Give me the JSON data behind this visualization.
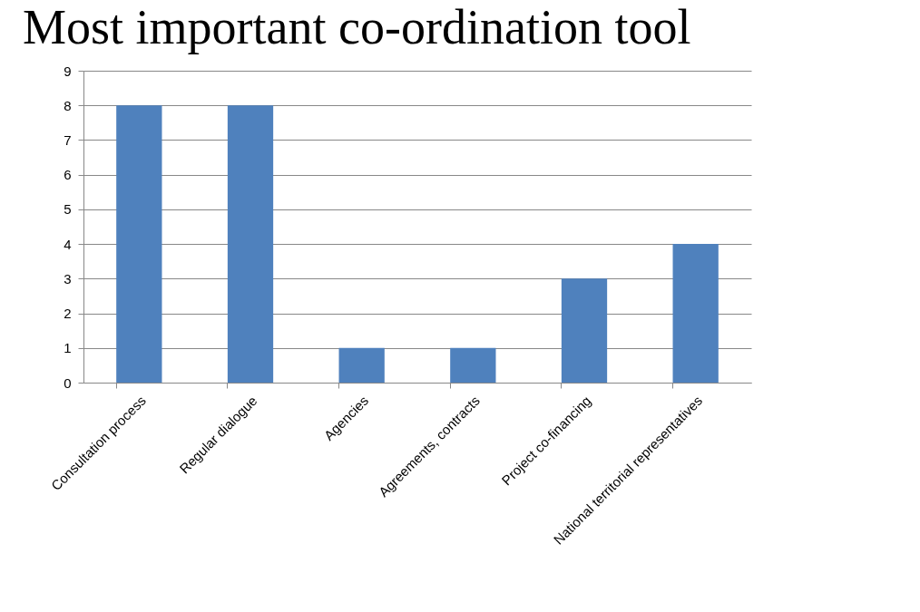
{
  "chart_data": {
    "type": "bar",
    "title": "Most important co-ordination tool",
    "categories": [
      "Consultation process",
      "Regular dialogue",
      "Agencies",
      "Agreements, contracts",
      "Project co-financing",
      "National territorial representatives"
    ],
    "values": [
      8,
      8,
      1,
      1,
      3,
      4
    ],
    "color": "#4f81bd",
    "ylim": [
      0,
      9
    ],
    "yticks": [
      0,
      1,
      2,
      3,
      4,
      5,
      6,
      7,
      8,
      9
    ],
    "grid": "y"
  }
}
